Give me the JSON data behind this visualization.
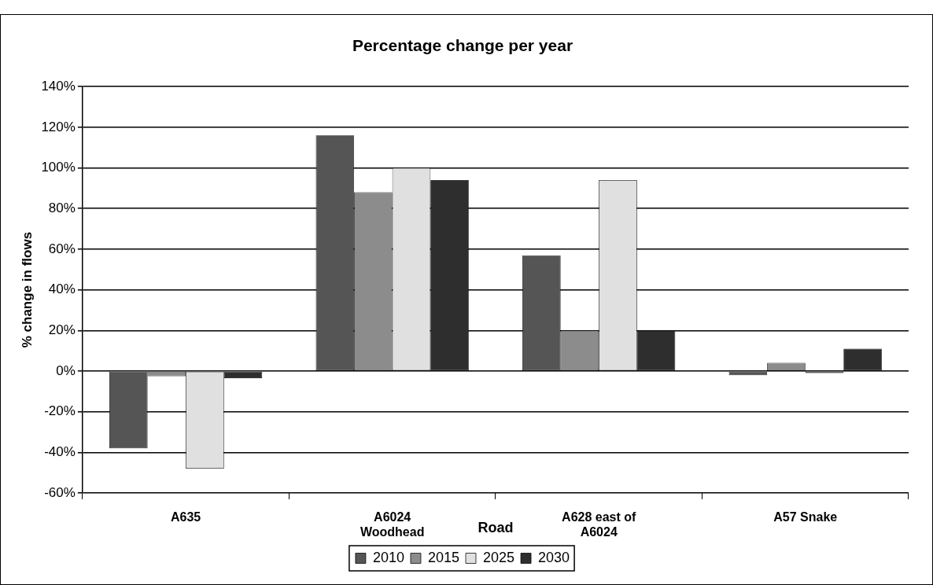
{
  "chart_data": {
    "type": "bar",
    "title": "Percentage change per year",
    "xlabel": "Road",
    "ylabel": "% change in flows",
    "categories": [
      "A635",
      "A6024 Woodhead",
      "A628 east of A6024",
      "A57 Snake"
    ],
    "series": [
      {
        "name": "2010",
        "color": "#555555",
        "values": [
          -38,
          116,
          57,
          -2
        ]
      },
      {
        "name": "2015",
        "color": "#8c8c8c",
        "values": [
          -2.5,
          88,
          20,
          4
        ]
      },
      {
        "name": "2025",
        "color": "#e0e0e0",
        "values": [
          -48,
          100,
          94,
          -1
        ]
      },
      {
        "name": "2030",
        "color": "#2e2e2e",
        "values": [
          -3.5,
          94,
          20,
          11
        ]
      }
    ],
    "ylim": [
      -60,
      140
    ],
    "yticks": [
      {
        "value": -60,
        "label": "-60%"
      },
      {
        "value": -40,
        "label": "-40%"
      },
      {
        "value": -20,
        "label": "-20%"
      },
      {
        "value": 0,
        "label": "0%"
      },
      {
        "value": 20,
        "label": "20%"
      },
      {
        "value": 40,
        "label": "40%"
      },
      {
        "value": 60,
        "label": "60%"
      },
      {
        "value": 80,
        "label": "80%"
      },
      {
        "value": 100,
        "label": "100%"
      },
      {
        "value": 120,
        "label": "120%"
      },
      {
        "value": 140,
        "label": "140%"
      }
    ],
    "grid": "y",
    "legend": "bottom"
  }
}
